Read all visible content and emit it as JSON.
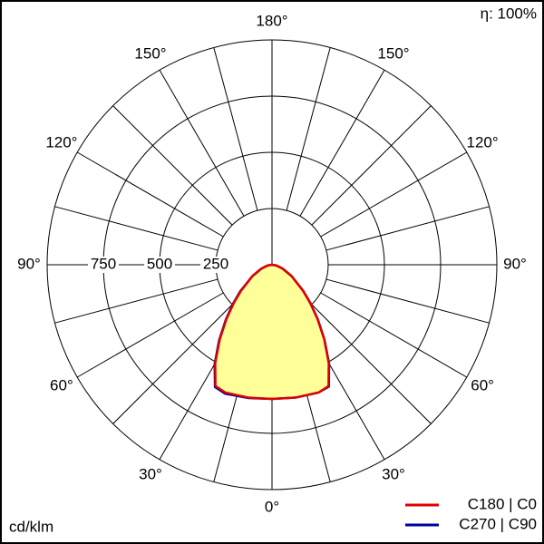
{
  "chart_data": {
    "type": "polar",
    "x": [
      -90,
      -80,
      -70,
      -60,
      -50,
      -45,
      -40,
      -35,
      -30,
      -25,
      -20,
      -10,
      0,
      10,
      20,
      25,
      30,
      35,
      40,
      45,
      50,
      60,
      70,
      80,
      90
    ],
    "series": [
      {
        "name": "C180 | C0",
        "color": "#e00000",
        "fill": "#ffff99",
        "values": [
          0,
          20,
          50,
          100,
          180,
          240,
          315,
          405,
          505,
          595,
          605,
          600,
          597,
          600,
          605,
          595,
          505,
          405,
          315,
          240,
          180,
          100,
          50,
          20,
          0
        ]
      },
      {
        "name": "C270 | C90",
        "color": "#0000a0",
        "values": [
          0,
          20,
          50,
          100,
          185,
          245,
          320,
          410,
          510,
          600,
          610,
          602,
          597,
          600,
          605,
          598,
          508,
          407,
          317,
          242,
          182,
          100,
          50,
          20,
          0
        ]
      }
    ],
    "rlim": [
      0,
      1000
    ],
    "rticks": [
      250,
      500,
      750
    ],
    "angle_ticks": [
      {
        "value": 0,
        "label": "0°"
      },
      {
        "value": 30,
        "label": "30°"
      },
      {
        "value": 60,
        "label": "60°"
      },
      {
        "value": 90,
        "label": "90°"
      },
      {
        "value": 120,
        "label": "120°"
      },
      {
        "value": 150,
        "label": "150°"
      },
      {
        "value": 180,
        "label": "180°"
      }
    ],
    "unit_label": "cd/klm",
    "annotation": "η: 100%"
  }
}
